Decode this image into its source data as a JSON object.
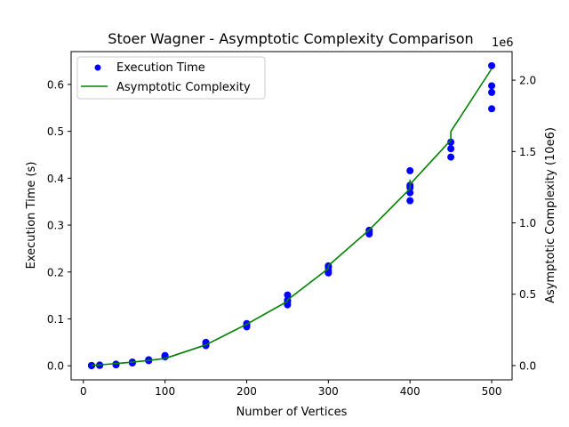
{
  "chart_data": {
    "type": "scatter",
    "title": "Stoer Wagner - Asymptotic Complexity Comparison",
    "xlabel": "Number of Vertices",
    "ylabel": "Execution Time (s)",
    "ylabel_right": "Asymptotic Complexity (10e6)",
    "right_offset_text": "1e6",
    "xlim": [
      -15,
      525
    ],
    "ylim": [
      -0.03,
      0.67
    ],
    "ylim_right": [
      -0.1,
      2.2
    ],
    "x_ticks": [
      0,
      100,
      200,
      300,
      400,
      500
    ],
    "x_tick_labels": [
      "0",
      "100",
      "200",
      "300",
      "400",
      "500"
    ],
    "y_ticks": [
      0.0,
      0.1,
      0.2,
      0.3,
      0.4,
      0.5,
      0.6
    ],
    "y_tick_labels": [
      "0.0",
      "0.1",
      "0.2",
      "0.3",
      "0.4",
      "0.5",
      "0.6"
    ],
    "y_right_ticks": [
      0.0,
      0.5,
      1.0,
      1.5,
      2.0
    ],
    "y_right_tick_labels": [
      "0.0",
      "0.5",
      "1.0",
      "1.5",
      "2.0"
    ],
    "legend_location": "top-left",
    "grid": false,
    "series": [
      {
        "name": "Execution Time",
        "kind": "scatter",
        "axis": "left",
        "color": "#0000ff",
        "points": [
          [
            10,
            0.0002
          ],
          [
            10,
            0.0004
          ],
          [
            10,
            0.0006
          ],
          [
            20,
            0.0008
          ],
          [
            20,
            0.0012
          ],
          [
            20,
            0.0015
          ],
          [
            40,
            0.002
          ],
          [
            40,
            0.003
          ],
          [
            40,
            0.0035
          ],
          [
            60,
            0.006
          ],
          [
            60,
            0.007
          ],
          [
            60,
            0.008
          ],
          [
            80,
            0.011
          ],
          [
            80,
            0.012
          ],
          [
            80,
            0.013
          ],
          [
            100,
            0.019
          ],
          [
            100,
            0.021
          ],
          [
            100,
            0.022
          ],
          [
            150,
            0.043
          ],
          [
            150,
            0.046
          ],
          [
            150,
            0.05
          ],
          [
            200,
            0.083
          ],
          [
            200,
            0.086
          ],
          [
            200,
            0.09
          ],
          [
            250,
            0.13
          ],
          [
            250,
            0.136
          ],
          [
            250,
            0.14
          ],
          [
            250,
            0.151
          ],
          [
            300,
            0.198
          ],
          [
            300,
            0.203
          ],
          [
            300,
            0.21
          ],
          [
            300,
            0.213
          ],
          [
            350,
            0.281
          ],
          [
            350,
            0.285
          ],
          [
            350,
            0.289
          ],
          [
            400,
            0.352
          ],
          [
            400,
            0.369
          ],
          [
            400,
            0.38
          ],
          [
            400,
            0.385
          ],
          [
            400,
            0.416
          ],
          [
            450,
            0.445
          ],
          [
            450,
            0.463
          ],
          [
            450,
            0.477
          ],
          [
            500,
            0.548
          ],
          [
            500,
            0.583
          ],
          [
            500,
            0.597
          ],
          [
            500,
            0.64
          ]
        ]
      },
      {
        "name": "Asymptotic Complexity",
        "kind": "line",
        "axis": "right",
        "color": "#008000",
        "points": [
          [
            10,
            0.0011
          ],
          [
            20,
            0.0052
          ],
          [
            40,
            0.0142
          ],
          [
            60,
            0.0241
          ],
          [
            80,
            0.0359
          ],
          [
            100,
            0.05
          ],
          [
            150,
            0.145
          ],
          [
            200,
            0.29
          ],
          [
            250,
            0.45
          ],
          [
            250,
            0.46
          ],
          [
            300,
            0.68
          ],
          [
            300,
            0.7
          ],
          [
            350,
            0.95
          ],
          [
            400,
            1.24
          ],
          [
            400,
            1.3
          ],
          [
            400,
            1.27
          ],
          [
            450,
            1.58
          ],
          [
            450,
            1.64
          ],
          [
            500,
            2.08
          ]
        ]
      }
    ]
  }
}
